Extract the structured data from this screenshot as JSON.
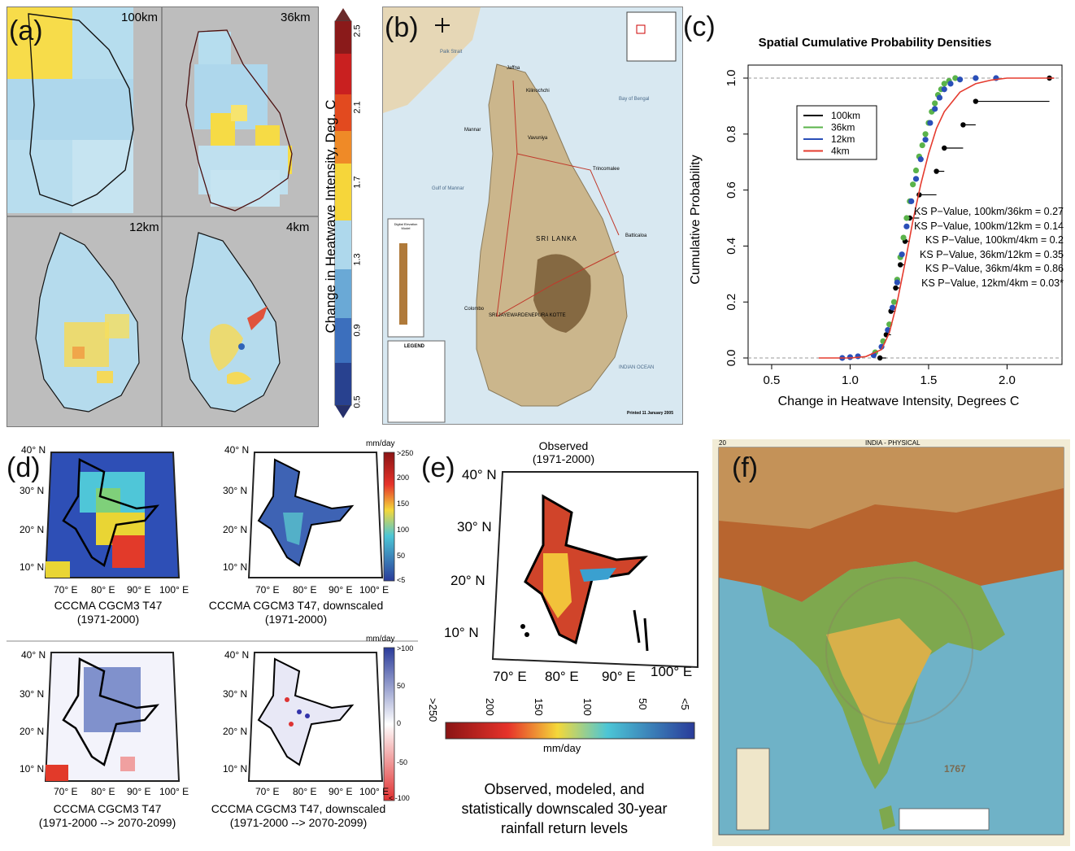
{
  "panel_a": {
    "letter": "(a)",
    "res_labels": [
      "100km",
      "36km",
      "12km",
      "4km"
    ],
    "colorbar": {
      "label": "Change in Heatwave Intensity, Deg. C",
      "ticks": [
        "0.5",
        "0.9",
        "1.3",
        "1.7",
        "2.1",
        "2.5"
      ]
    }
  },
  "panel_b": {
    "letter": "(b)",
    "map_title": "SRI LANKA",
    "places": [
      "Jaffna",
      "Kilinochchi",
      "Mannar",
      "Vavuniya",
      "Trincomalee",
      "Batticaloa",
      "Colombo",
      "SRI JAYEWARDENEPURA KOTTE"
    ],
    "water_labels": [
      "Palk Strait",
      "Bay of Bengal",
      "Gulf of Mannar",
      "INDIAN OCEAN"
    ],
    "legend_title": "LEGEND",
    "elevation_title": "Digital Elevation Model",
    "printed": "Printed 11 January 2005"
  },
  "panel_c": {
    "letter": "(c)",
    "ks_labels": [
      "KS P−Value, 100km/36km = 0.27",
      "KS P−Value, 100km/12km = 0.14",
      "KS P−Value, 100km/4km = 0.2",
      "KS P−Value, 36km/12km = 0.35",
      "KS P−Value, 36km/4km = 0.86",
      "KS P−Value, 12km/4km = 0.03*"
    ]
  },
  "chart_data": {
    "type": "line",
    "title": "Spatial Cumulative Probability Densities",
    "xlabel": "Change in Heatwave Intensity, Degrees C",
    "ylabel": "Cumulative Probability",
    "xlim": [
      0.35,
      2.35
    ],
    "ylim": [
      0,
      1
    ],
    "xticks": [
      "0.5",
      "1.0",
      "1.5",
      "2.0"
    ],
    "yticks": [
      "0.0",
      "0.2",
      "0.4",
      "0.6",
      "0.8",
      "1.0"
    ],
    "legend_position": "upper-left",
    "series": [
      {
        "name": "100km",
        "color": "#000000",
        "style": "step-points",
        "x": [
          1.19,
          1.23,
          1.26,
          1.29,
          1.32,
          1.35,
          1.38,
          1.44,
          1.55,
          1.6,
          1.72,
          1.8,
          2.27
        ],
        "y": [
          0.0,
          0.083,
          0.167,
          0.25,
          0.333,
          0.417,
          0.5,
          0.583,
          0.667,
          0.75,
          0.833,
          0.917,
          1.0
        ],
        "x_end": [
          1.23,
          1.26,
          1.29,
          1.32,
          1.35,
          1.38,
          1.44,
          1.55,
          1.6,
          1.72,
          1.8,
          2.27,
          2.3
        ]
      },
      {
        "name": "36km",
        "color": "#5ab34a",
        "style": "points",
        "x": [
          1.16,
          1.21,
          1.25,
          1.28,
          1.3,
          1.32,
          1.34,
          1.36,
          1.38,
          1.4,
          1.42,
          1.44,
          1.46,
          1.48,
          1.5,
          1.52,
          1.54,
          1.56,
          1.58,
          1.6,
          1.63,
          1.67
        ],
        "y": [
          0.02,
          0.06,
          0.12,
          0.2,
          0.28,
          0.36,
          0.43,
          0.5,
          0.56,
          0.62,
          0.67,
          0.72,
          0.76,
          0.8,
          0.84,
          0.88,
          0.91,
          0.94,
          0.96,
          0.98,
          0.99,
          1.0
        ]
      },
      {
        "name": "12km",
        "color": "#2a4fb8",
        "style": "points",
        "x": [
          0.95,
          1.0,
          1.05,
          1.15,
          1.2,
          1.24,
          1.27,
          1.3,
          1.33,
          1.36,
          1.39,
          1.42,
          1.45,
          1.48,
          1.51,
          1.54,
          1.57,
          1.6,
          1.64,
          1.7,
          1.8,
          1.93
        ],
        "y": [
          0.0,
          0.003,
          0.006,
          0.01,
          0.04,
          0.1,
          0.18,
          0.27,
          0.37,
          0.47,
          0.56,
          0.64,
          0.71,
          0.78,
          0.84,
          0.89,
          0.93,
          0.96,
          0.98,
          0.995,
          1.0,
          1.0
        ]
      },
      {
        "name": "4km",
        "color": "#e53b2e",
        "style": "line",
        "x": [
          0.8,
          1.0,
          1.1,
          1.2,
          1.25,
          1.3,
          1.35,
          1.4,
          1.45,
          1.5,
          1.55,
          1.6,
          1.7,
          1.8,
          1.9,
          2.0,
          2.3
        ],
        "y": [
          0.0,
          0.0,
          0.005,
          0.03,
          0.09,
          0.2,
          0.34,
          0.49,
          0.62,
          0.73,
          0.82,
          0.88,
          0.95,
          0.98,
          0.993,
          1.0,
          1.0
        ]
      }
    ]
  },
  "panel_d": {
    "letter": "(d)",
    "lat_labels": [
      "40° N",
      "30° N",
      "20° N",
      "10° N"
    ],
    "lon_labels": [
      "70° E",
      "80° E",
      "90° E",
      "100° E"
    ],
    "captions": [
      [
        "CCCMA CGCM3 T47",
        "(1971-2000)"
      ],
      [
        "CCCMA CGCM3 T47, downscaled",
        "(1971-2000)"
      ],
      [
        "CCCMA CGCM3 T47",
        "(1971-2000 --> 2070-2099)"
      ],
      [
        "CCCMA CGCM3 T47, downscaled",
        "(1971-2000 --> 2070-2099)"
      ]
    ],
    "cb1": {
      "unit": "mm/day",
      "ticks": [
        ">250",
        "200",
        "150",
        "100",
        "50",
        "<5"
      ]
    },
    "cb2": {
      "unit": "mm/day",
      "ticks": [
        ">100",
        "50",
        "0",
        "-50",
        "< -100"
      ]
    }
  },
  "panel_e": {
    "letter": "(e)",
    "title": "Observed",
    "subtitle": "(1971-2000)",
    "lat_labels": [
      "40° N",
      "30° N",
      "20° N",
      "10° N"
    ],
    "lon_labels": [
      "70° E",
      "80° E",
      "90° E",
      "100° E"
    ],
    "colorbar": {
      "unit": "mm/day",
      "ticks": [
        ">250",
        "200",
        "150",
        "100",
        "50",
        "<5"
      ]
    },
    "caption": [
      "Observed, modeled, and",
      "statistically downscaled 30-year",
      "rainfall return levels"
    ]
  },
  "panel_f": {
    "letter": "(f)",
    "page_number": "20",
    "map_title": "INDIA - PHYSICAL",
    "seal_year": "1767"
  }
}
